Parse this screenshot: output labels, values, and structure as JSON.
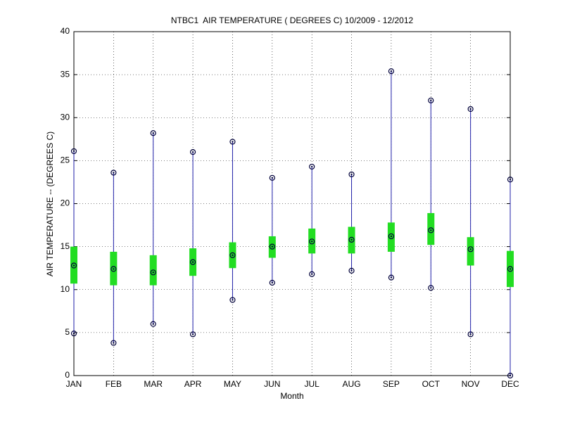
{
  "chart_data": {
    "type": "range",
    "title": "NTBC1  AIR TEMPERATURE ( DEGREES C) 10/2009 - 12/2012",
    "x_label": "Month",
    "y_label": "AIR TEMPERATURE -- (DEGREES C)",
    "categories": [
      "JAN",
      "FEB",
      "MAR",
      "APR",
      "MAY",
      "JUN",
      "JUL",
      "AUG",
      "SEP",
      "OCT",
      "NOV",
      "DEC"
    ],
    "low": [
      4.9,
      3.8,
      6.0,
      4.8,
      8.8,
      10.8,
      11.8,
      12.2,
      11.4,
      10.2,
      4.8,
      0.0
    ],
    "high": [
      26.1,
      23.6,
      28.2,
      26.0,
      27.2,
      23.0,
      24.3,
      23.4,
      35.4,
      32.0,
      31.0,
      22.8
    ],
    "box_low": [
      10.7,
      10.5,
      10.5,
      11.6,
      12.5,
      13.7,
      14.2,
      14.2,
      14.4,
      15.2,
      12.8,
      10.3
    ],
    "box_high": [
      15.0,
      14.4,
      14.0,
      14.8,
      15.5,
      16.2,
      17.1,
      17.3,
      17.8,
      18.9,
      16.1,
      14.5
    ],
    "mean": [
      12.8,
      12.4,
      12.0,
      13.2,
      14.0,
      15.0,
      15.6,
      15.8,
      16.2,
      16.9,
      14.7,
      12.4
    ],
    "line_color": "#1f1fa8",
    "box_color": "#22dd22",
    "marker_color": "#00003a",
    "ylim": [
      0,
      40
    ],
    "yticks": [
      0,
      5,
      10,
      15,
      20,
      25,
      30,
      35,
      40
    ],
    "grid": true
  }
}
